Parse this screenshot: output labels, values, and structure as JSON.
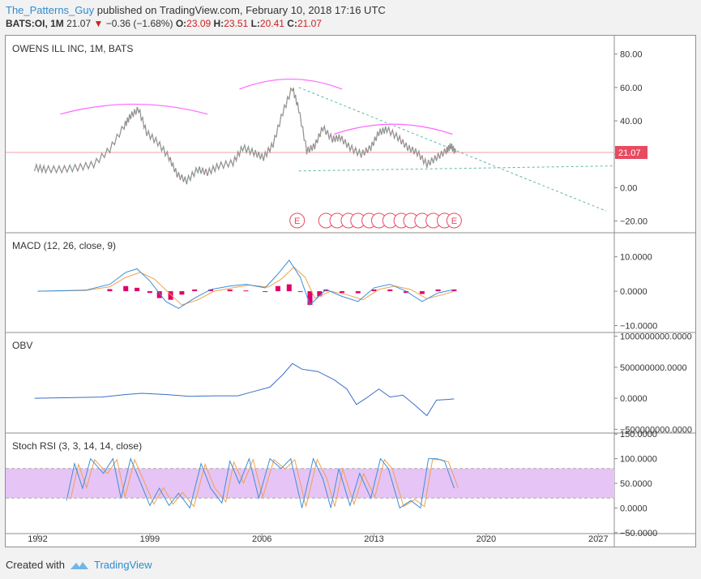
{
  "header": {
    "username": "The_Patterns_Guy",
    "published_text": "published on TradingView.com, February 10, 2018 17:16 UTC",
    "symbol_interval": "BATS:OI, 1M",
    "last": "21.07",
    "change": "−0.36 (−1.68%)",
    "open_label": "O:",
    "open": "23.09",
    "high_label": "H:",
    "high": "23.51",
    "low_label": "L:",
    "low": "20.41",
    "close_label": "C:",
    "close": "21.07"
  },
  "footer": {
    "created_with": "Created with",
    "brand": "TradingView"
  },
  "colors": {
    "pink": "#ff66ff",
    "teal": "#5bb8a8",
    "macd": "#3b8fd8",
    "signal": "#f0a050",
    "hist": "#e0006c",
    "obv": "#3b6fc8",
    "stoch_k": "#3b8fd8",
    "stoch_d": "#f0a050",
    "band": "#e6c4f5",
    "price_tag": "#e84a5f"
  },
  "x_axis": {
    "labels": [
      "1992",
      "1999",
      "2006",
      "2013",
      "2020",
      "2027"
    ]
  },
  "chart_data": [
    {
      "type": "line",
      "pane": "price",
      "title": "OWENS ILL INC, 1M, BATS",
      "y_tick_labels": [
        "80.00",
        "60.00",
        "40.00",
        "20.00",
        "0.00",
        "−20.00"
      ],
      "ylim": [
        -27,
        91
      ],
      "xlim": [
        1990.0,
        2028.0
      ],
      "last_price_label": "21.07",
      "last_price": 21.07,
      "earnings_label": "E",
      "series": [
        {
          "values": [
            [
              1991.8,
              12
            ],
            [
              1992.5,
              11
            ],
            [
              1993.5,
              11
            ],
            [
              1994.5,
              12
            ],
            [
              1995.5,
              14
            ],
            [
              1996.5,
              23
            ],
            [
              1997.4,
              37
            ],
            [
              1997.8,
              43
            ],
            [
              1998.3,
              47
            ],
            [
              1998.8,
              33
            ],
            [
              1999.5,
              27
            ],
            [
              2000.2,
              18
            ],
            [
              2000.7,
              8
            ],
            [
              2001.3,
              4
            ],
            [
              2002.0,
              11
            ],
            [
              2002.6,
              9
            ],
            [
              2003.3,
              13
            ],
            [
              2004.2,
              15
            ],
            [
              2004.8,
              24
            ],
            [
              2005.5,
              21
            ],
            [
              2006.1,
              18
            ],
            [
              2006.7,
              26
            ],
            [
              2007.3,
              45
            ],
            [
              2007.9,
              60
            ],
            [
              2008.3,
              47
            ],
            [
              2008.8,
              22
            ],
            [
              2009.3,
              25
            ],
            [
              2009.8,
              36
            ],
            [
              2010.4,
              29
            ],
            [
              2010.9,
              30
            ],
            [
              2011.5,
              24
            ],
            [
              2012.2,
              20
            ],
            [
              2012.8,
              24
            ],
            [
              2013.3,
              33
            ],
            [
              2013.8,
              35
            ],
            [
              2014.5,
              30
            ],
            [
              2015.1,
              24
            ],
            [
              2015.7,
              21
            ],
            [
              2016.3,
              14
            ],
            [
              2016.9,
              18
            ],
            [
              2017.5,
              22
            ],
            [
              2017.8,
              25
            ],
            [
              2018.1,
              21
            ]
          ]
        }
      ],
      "annotations": {
        "arcs_peak_years": [
          1998.0,
          2007.8,
          2014.2
        ],
        "downtrend": [
          [
            2008.3,
            60
          ],
          [
            2027.5,
            -14
          ]
        ],
        "support": [
          [
            2008.3,
            10
          ],
          [
            2028.0,
            13
          ]
        ],
        "earnings_years": [
          2008.2,
          2010.0,
          2010.7,
          2011.4,
          2012.0,
          2012.7,
          2013.3,
          2014.0,
          2014.7,
          2015.3,
          2016.0,
          2016.7,
          2017.4,
          2018.0
        ]
      }
    },
    {
      "type": "line",
      "pane": "macd",
      "title": "MACD (12, 26, close, 9)",
      "y_tick_labels": [
        "10.0000",
        "0.0000",
        "−10.0000"
      ],
      "ylim": [
        -12,
        17
      ],
      "series": [
        {
          "values": [
            [
              1992.0,
              0
            ],
            [
              1995.0,
              0.3
            ],
            [
              1996.5,
              2
            ],
            [
              1997.5,
              5.5
            ],
            [
              1998.2,
              6.5
            ],
            [
              1999.0,
              3
            ],
            [
              2000.0,
              -3
            ],
            [
              2000.8,
              -5
            ],
            [
              2001.8,
              -2
            ],
            [
              2002.8,
              0.5
            ],
            [
              2004.0,
              1.5
            ],
            [
              2005.0,
              2
            ],
            [
              2006.2,
              1
            ],
            [
              2007.0,
              5
            ],
            [
              2007.7,
              9
            ],
            [
              2008.4,
              4
            ],
            [
              2009.0,
              -4
            ],
            [
              2010.0,
              0.5
            ],
            [
              2011.0,
              -1.5
            ],
            [
              2012.0,
              -3
            ],
            [
              2013.0,
              1
            ],
            [
              2014.0,
              2
            ],
            [
              2015.0,
              0
            ],
            [
              2016.0,
              -3
            ],
            [
              2017.0,
              -0.5
            ],
            [
              2018.0,
              0.5
            ]
          ]
        },
        {
          "values": [
            [
              1992.0,
              0
            ],
            [
              1995.0,
              0.2
            ],
            [
              1996.5,
              1.3
            ],
            [
              1997.5,
              4
            ],
            [
              1998.4,
              5.5
            ],
            [
              1999.3,
              3.5
            ],
            [
              2000.3,
              -1
            ],
            [
              2001.0,
              -4
            ],
            [
              2002.0,
              -2.5
            ],
            [
              2003.0,
              0
            ],
            [
              2004.2,
              1
            ],
            [
              2005.2,
              1.8
            ],
            [
              2006.4,
              1.2
            ],
            [
              2007.2,
              3.5
            ],
            [
              2008.0,
              7
            ],
            [
              2008.7,
              4
            ],
            [
              2009.3,
              -2
            ],
            [
              2010.3,
              0
            ],
            [
              2011.3,
              -1
            ],
            [
              2012.3,
              -2.5
            ],
            [
              2013.3,
              0.5
            ],
            [
              2014.3,
              1.5
            ],
            [
              2015.3,
              0.5
            ],
            [
              2016.3,
              -2.2
            ],
            [
              2017.3,
              -1
            ],
            [
              2018.0,
              0
            ]
          ]
        }
      ],
      "histogram": [
        [
          1996.5,
          0.6
        ],
        [
          1997.5,
          1.5
        ],
        [
          1998.2,
          1
        ],
        [
          1999.0,
          -0.5
        ],
        [
          1999.6,
          -2
        ],
        [
          2000.3,
          -2.5
        ],
        [
          2001.0,
          -1
        ],
        [
          2001.8,
          0.5
        ],
        [
          2002.8,
          0.5
        ],
        [
          2004.0,
          0.5
        ],
        [
          2005.0,
          0.2
        ],
        [
          2006.2,
          -0.2
        ],
        [
          2007.0,
          1.5
        ],
        [
          2007.7,
          2
        ],
        [
          2008.4,
          0
        ],
        [
          2009.0,
          -4
        ],
        [
          2009.6,
          -1.5
        ],
        [
          2010.0,
          0.5
        ],
        [
          2011.0,
          -0.5
        ],
        [
          2012.0,
          -0.6
        ],
        [
          2013.0,
          0.5
        ],
        [
          2014.0,
          0.5
        ],
        [
          2015.0,
          -0.5
        ],
        [
          2016.0,
          -0.8
        ],
        [
          2017.0,
          0.5
        ],
        [
          2018.0,
          0.5
        ]
      ]
    },
    {
      "type": "line",
      "pane": "obv",
      "title": "OBV",
      "y_tick_labels": [
        "1000000000.0000",
        "500000000.0000",
        "0.0000",
        "−500000000.0000"
      ],
      "ylim": [
        -560000000,
        1060000000
      ],
      "series": [
        {
          "values": [
            [
              1991.8,
              0
            ],
            [
              1994.0,
              10000000
            ],
            [
              1996.0,
              20000000
            ],
            [
              1997.5,
              60000000
            ],
            [
              1998.5,
              80000000
            ],
            [
              2000.0,
              60000000
            ],
            [
              2001.5,
              30000000
            ],
            [
              2003.0,
              40000000
            ],
            [
              2004.5,
              40000000
            ],
            [
              2005.5,
              110000000
            ],
            [
              2006.5,
              180000000
            ],
            [
              2007.3,
              380000000
            ],
            [
              2007.9,
              560000000
            ],
            [
              2008.5,
              470000000
            ],
            [
              2009.5,
              430000000
            ],
            [
              2010.5,
              300000000
            ],
            [
              2011.3,
              150000000
            ],
            [
              2011.9,
              -100000000
            ],
            [
              2012.5,
              0
            ],
            [
              2013.3,
              150000000
            ],
            [
              2014.0,
              20000000
            ],
            [
              2014.8,
              50000000
            ],
            [
              2015.5,
              -100000000
            ],
            [
              2016.3,
              -280000000
            ],
            [
              2016.9,
              -30000000
            ],
            [
              2017.5,
              -20000000
            ],
            [
              2018.0,
              -10000000
            ]
          ]
        }
      ]
    },
    {
      "type": "line",
      "pane": "stoch_rsi",
      "title": "Stoch RSI (3, 3, 14, 14, close)",
      "y_tick_labels": [
        "150.0000",
        "100.0000",
        "50.0000",
        "0.0000",
        "−50.0000"
      ],
      "ylim": [
        -52,
        152
      ],
      "bands": [
        20,
        80
      ],
      "series": [
        {
          "values": [
            [
              1993.8,
              15
            ],
            [
              1994.3,
              90
            ],
            [
              1994.8,
              40
            ],
            [
              1995.3,
              100
            ],
            [
              1996.1,
              70
            ],
            [
              1996.7,
              100
            ],
            [
              1997.2,
              20
            ],
            [
              1997.8,
              100
            ],
            [
              1998.5,
              45
            ],
            [
              1999.0,
              5
            ],
            [
              1999.6,
              40
            ],
            [
              2000.2,
              5
            ],
            [
              2000.8,
              30
            ],
            [
              2001.5,
              0
            ],
            [
              2002.2,
              90
            ],
            [
              2002.8,
              40
            ],
            [
              2003.5,
              10
            ],
            [
              2004.0,
              95
            ],
            [
              2004.6,
              50
            ],
            [
              2005.2,
              100
            ],
            [
              2005.8,
              20
            ],
            [
              2006.5,
              100
            ],
            [
              2007.2,
              80
            ],
            [
              2007.8,
              100
            ],
            [
              2008.5,
              0
            ],
            [
              2009.2,
              100
            ],
            [
              2009.8,
              60
            ],
            [
              2010.3,
              0
            ],
            [
              2010.8,
              80
            ],
            [
              2011.5,
              5
            ],
            [
              2012.1,
              70
            ],
            [
              2012.8,
              20
            ],
            [
              2013.4,
              100
            ],
            [
              2013.9,
              80
            ],
            [
              2014.6,
              0
            ],
            [
              2015.3,
              15
            ],
            [
              2015.9,
              0
            ],
            [
              2016.4,
              100
            ],
            [
              2016.9,
              100
            ],
            [
              2017.4,
              95
            ],
            [
              2018.0,
              40
            ]
          ]
        }
      ]
    }
  ]
}
